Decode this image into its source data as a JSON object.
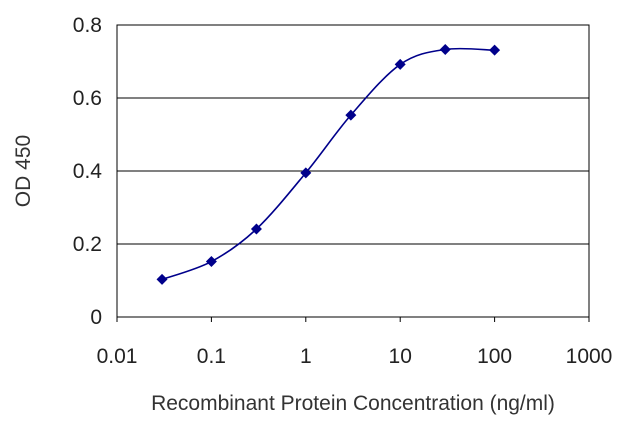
{
  "chart_data": {
    "type": "line",
    "title": "",
    "xlabel": "Recombinant Protein Concentration (ng/ml)",
    "ylabel": "OD 450",
    "x_scale": "log",
    "xlim": [
      0.01,
      1000
    ],
    "ylim": [
      0,
      0.8
    ],
    "x_ticks": [
      "0.01",
      "0.1",
      "1",
      "10",
      "100",
      "1000"
    ],
    "y_ticks": [
      "0",
      "0.2",
      "0.4",
      "0.6",
      "0.8"
    ],
    "grid": "horizontal",
    "legend": "none",
    "series": [
      {
        "x": [
          0.03,
          0.1,
          0.3,
          1,
          3,
          10,
          30,
          100
        ],
        "y": [
          0.103,
          0.152,
          0.241,
          0.395,
          0.553,
          0.692,
          0.733,
          0.731
        ],
        "color": "#00008b"
      }
    ]
  }
}
